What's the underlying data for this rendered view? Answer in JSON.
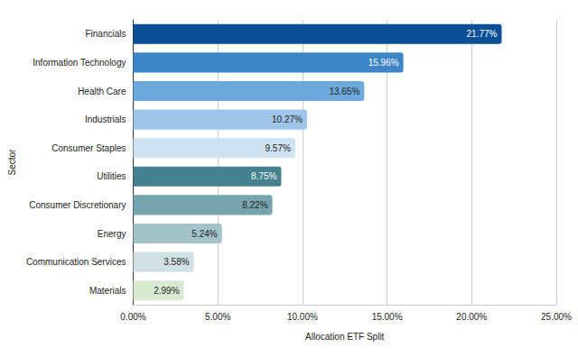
{
  "chart_data": {
    "type": "bar",
    "orientation": "horizontal",
    "x_label": "Allocation ETF Split",
    "y_label": "Sector",
    "categories": [
      "Financials",
      "Information Technology",
      "Health Care",
      "Industrials",
      "Consumer Staples",
      "Utilities",
      "Consumer Discretionary",
      "Energy",
      "Communication Services",
      "Materials"
    ],
    "values": [
      21.77,
      15.96,
      13.65,
      10.27,
      9.57,
      8.75,
      8.22,
      5.24,
      3.58,
      2.99
    ],
    "value_labels": [
      "21.77%",
      "15.96%",
      "13.65%",
      "10.27%",
      "9.57%",
      "8.75%",
      "8.22%",
      "5.24%",
      "3.58%",
      "2.99%"
    ],
    "colors": [
      "#0b4f96",
      "#3d85c6",
      "#6fa8dc",
      "#9fc5e8",
      "#cfe2f3",
      "#45818e",
      "#76a5af",
      "#a2c4c9",
      "#d0e0e3",
      "#d9ead3"
    ],
    "xlim": [
      0,
      25
    ],
    "xticks": [
      {
        "value": 0,
        "label": "0.00%"
      },
      {
        "value": 5,
        "label": "5.00%"
      },
      {
        "value": 10,
        "label": "10.00%"
      },
      {
        "value": 15,
        "label": "15.00%"
      },
      {
        "value": 20,
        "label": "20.00%"
      },
      {
        "value": 25,
        "label": "25.00%"
      }
    ],
    "grid": true,
    "data_labels": true
  }
}
